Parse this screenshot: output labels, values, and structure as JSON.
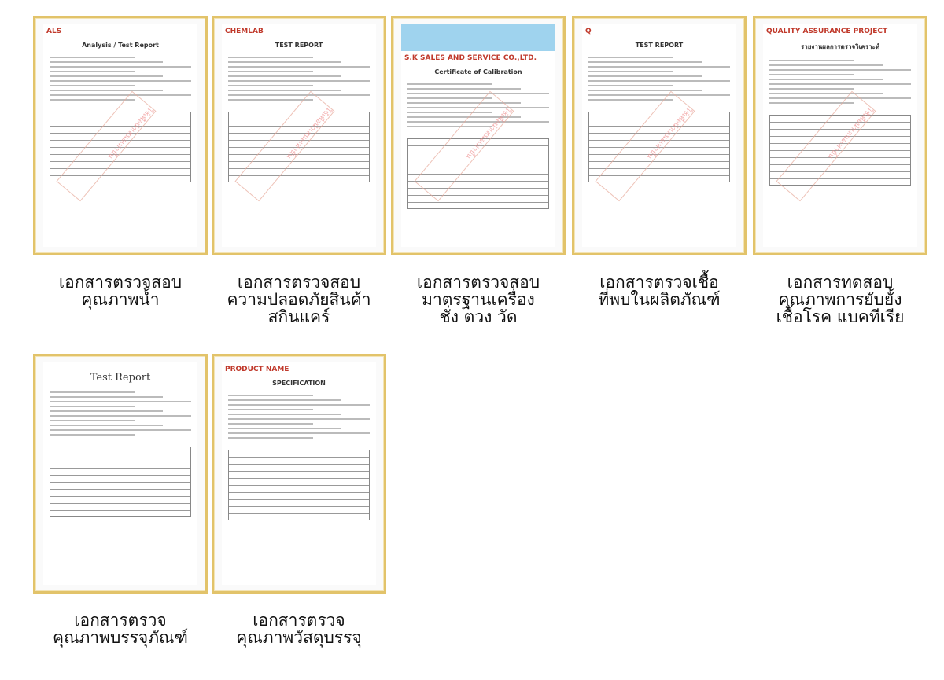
{
  "watermark": "ใช้เพื่อนำเสนอเท่านั้น",
  "items": [
    {
      "doc_title": "Analysis / Test Report",
      "logo": "ALS",
      "line1": "เอกสารตรวจสอบ",
      "line2": "คุณภาพน้ำ",
      "line3": ""
    },
    {
      "doc_title": "TEST REPORT",
      "logo": "CHEMLAB",
      "line1": "เอกสารตรวจสอบ",
      "line2": "ความปลอดภัยสินค้า",
      "line3": "สกินแคร์"
    },
    {
      "doc_title": "Certificate of Calibration",
      "logo": "S.K SALES AND SERVICE CO.,LTD.",
      "line1": "เอกสารตรวจสอบ",
      "line2": "มาตรฐานเครื่อง",
      "line3": "ชั่ง ตวง วัด"
    },
    {
      "doc_title": "TEST REPORT",
      "logo": "Q",
      "line1": "เอกสารตรวจเชื้อ",
      "line2": "ที่พบในผลิตภัณฑ์",
      "line3": ""
    },
    {
      "doc_title": "รายงานผลการตรวจวิเคราะห์",
      "logo": "QUALITY ASSURANCE PROJECT",
      "line1": "เอกสารทดสอบ",
      "line2": "คุณภาพการยับยั้ง",
      "line3": "เชื้อโรค แบคทีเรีย"
    },
    {
      "doc_title": "Test Report",
      "logo": "",
      "line1": "เอกสารตรวจ",
      "line2": "คุณภาพบรรจุภัณฑ์",
      "line3": ""
    },
    {
      "doc_title": "SPECIFICATION",
      "logo": "PRODUCT NAME",
      "line1": "เอกสารตรวจ",
      "line2": "คุณภาพวัสดุบรรจุ",
      "line3": ""
    }
  ]
}
